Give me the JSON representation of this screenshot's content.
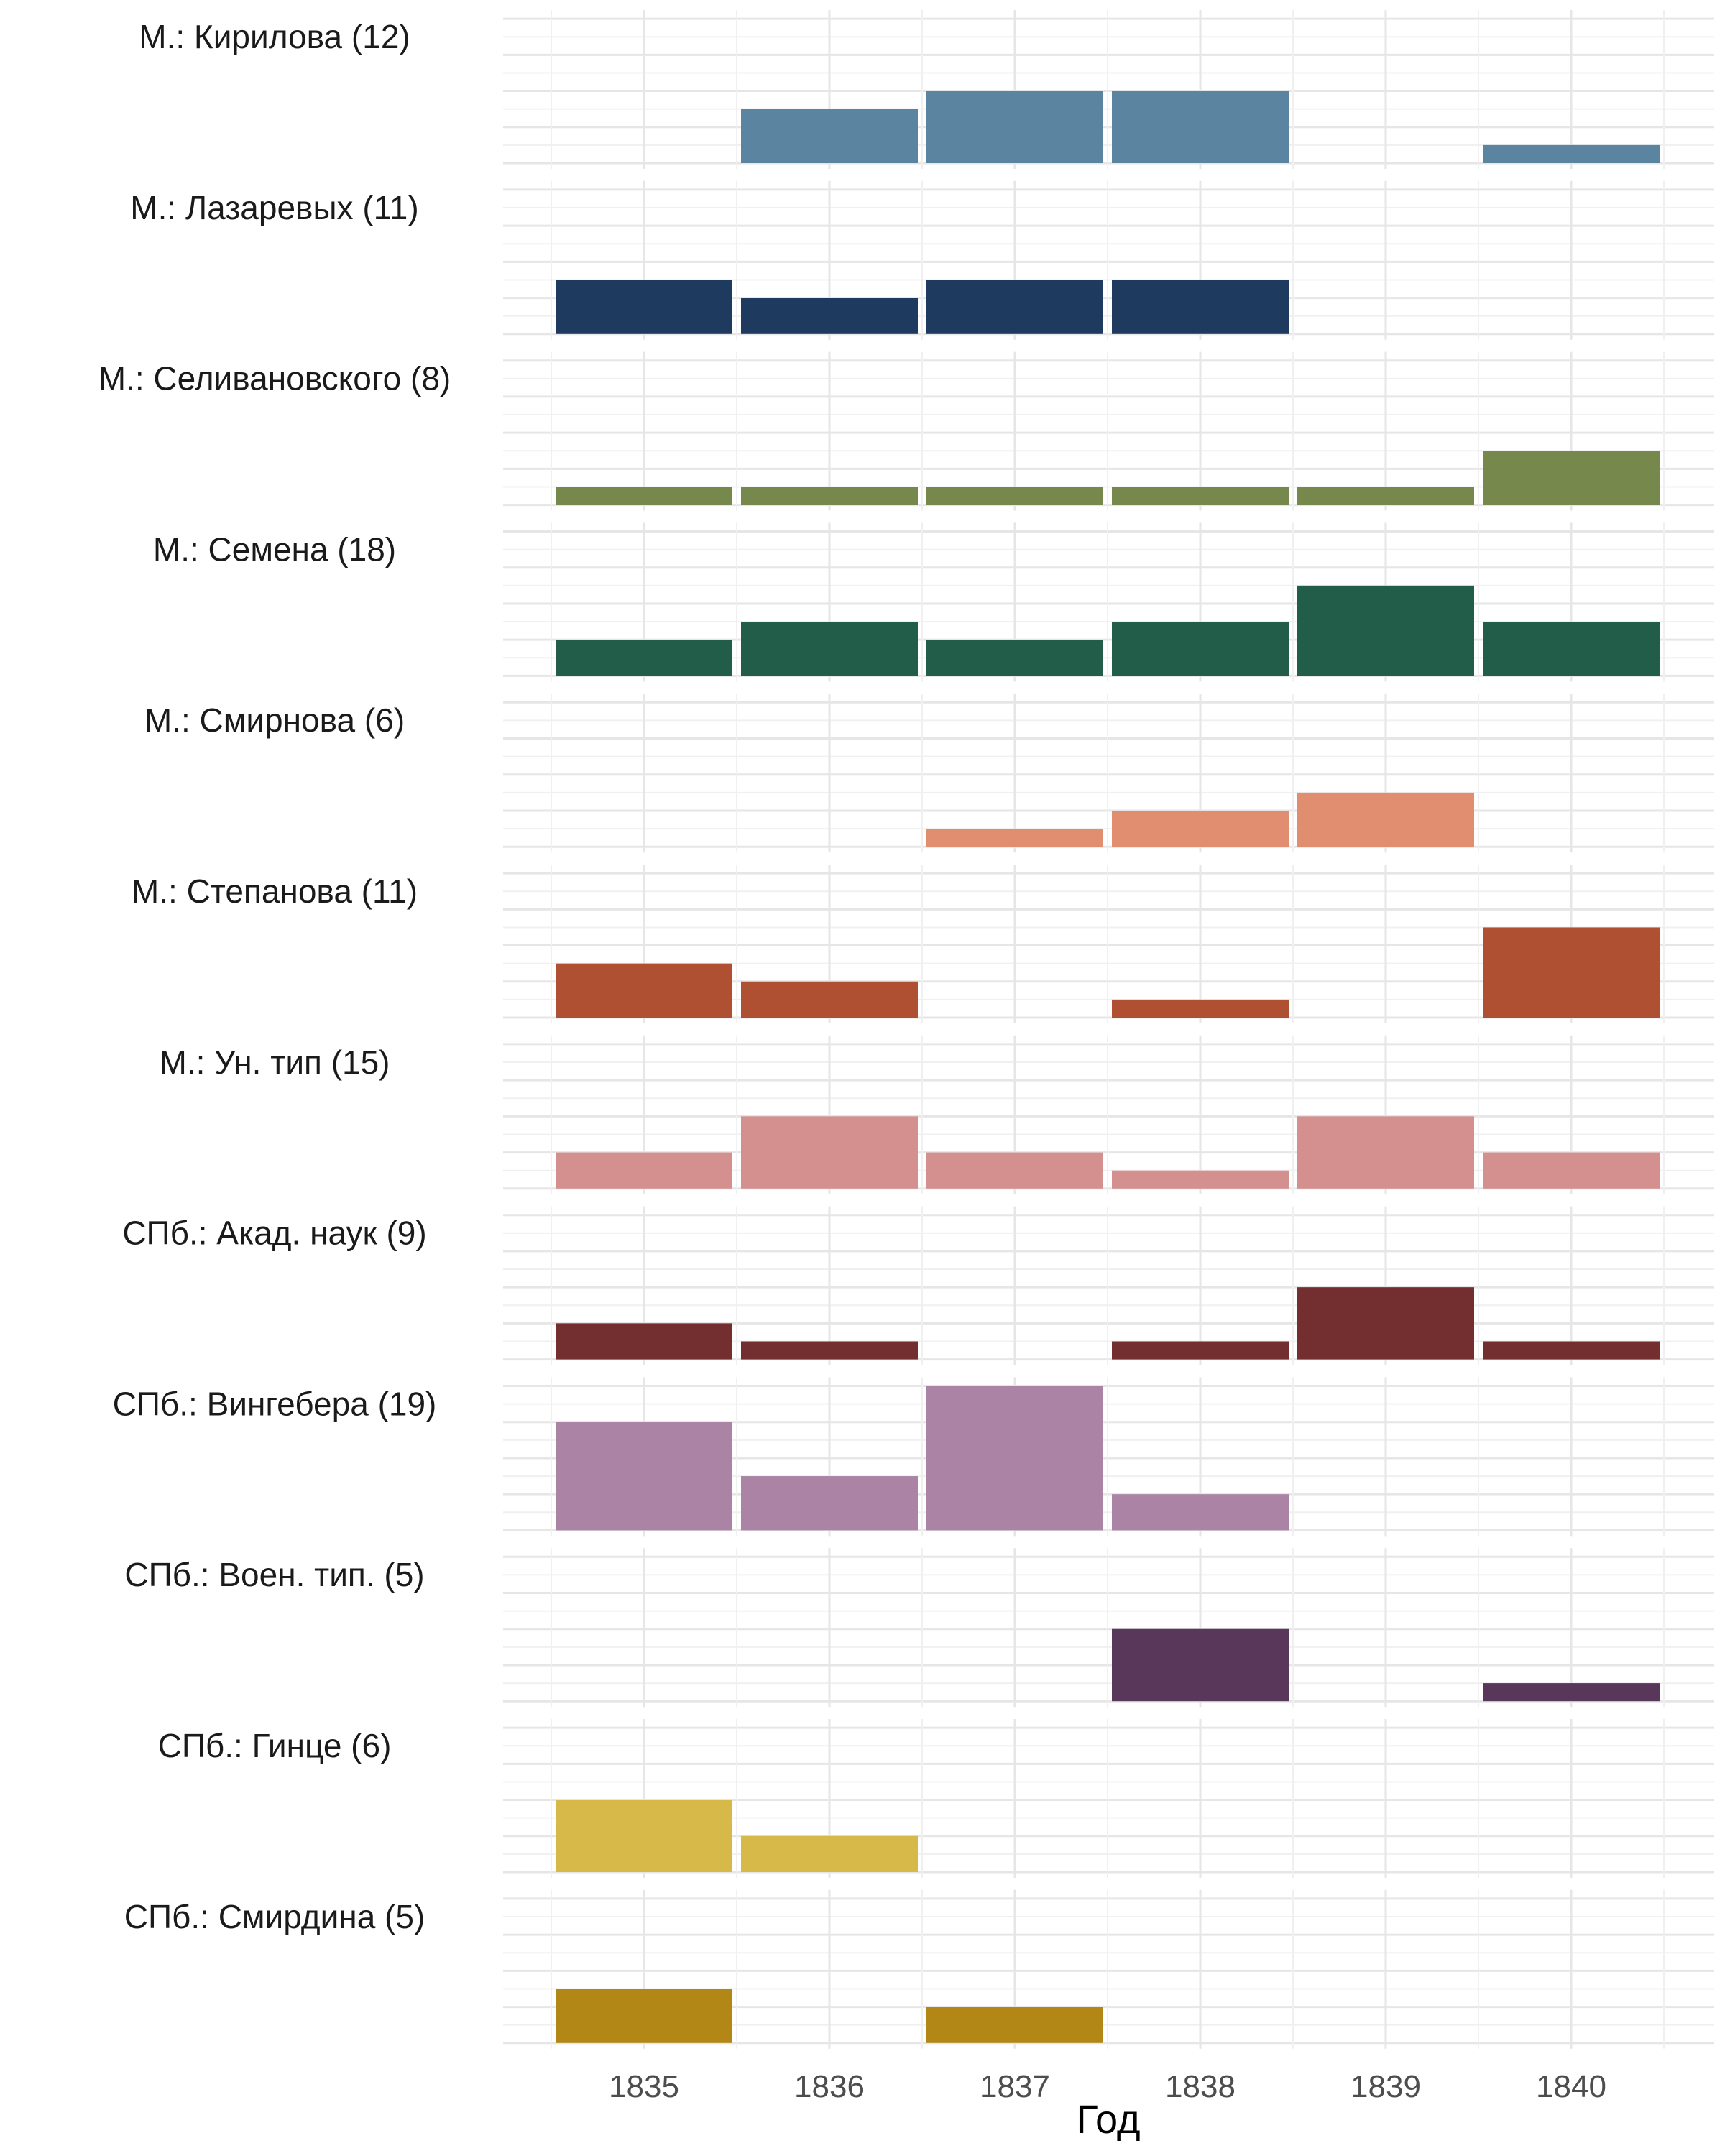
{
  "chart_data": {
    "type": "bar",
    "layout": "small-multiples",
    "xlabel": "Год",
    "x": [
      "1835",
      "1836",
      "1837",
      "1838",
      "1839",
      "1840"
    ],
    "ylim": [
      0,
      8
    ],
    "grid": true,
    "legend": "none",
    "series": [
      {
        "name": "М.: Кирилова (12)",
        "color": "#5b84a0",
        "values": [
          0,
          3,
          4,
          4,
          0,
          1
        ]
      },
      {
        "name": "М.: Лазаревых (11)",
        "color": "#1f3a5f",
        "values": [
          3,
          2,
          3,
          3,
          0,
          0
        ]
      },
      {
        "name": "М.: Селивановского (8)",
        "color": "#76884b",
        "values": [
          1,
          1,
          1,
          1,
          1,
          3
        ]
      },
      {
        "name": "М.: Семена (18)",
        "color": "#215d48",
        "values": [
          2,
          3,
          2,
          3,
          5,
          3
        ]
      },
      {
        "name": "М.: Смирнова (6)",
        "color": "#e08e6f",
        "values": [
          0,
          0,
          1,
          2,
          3,
          0
        ]
      },
      {
        "name": "М.: Степанова (11)",
        "color": "#b05032",
        "values": [
          3,
          2,
          0,
          1,
          0,
          5
        ]
      },
      {
        "name": "М.: Ун. тип (15)",
        "color": "#d48f8f",
        "values": [
          2,
          4,
          2,
          1,
          4,
          2
        ]
      },
      {
        "name": "СПб.: Акад. наук (9)",
        "color": "#732e30",
        "values": [
          2,
          1,
          0,
          1,
          4,
          1
        ]
      },
      {
        "name": "СПб.: Вингебера (19)",
        "color": "#aa83a5",
        "values": [
          6,
          3,
          8,
          2,
          0,
          0
        ]
      },
      {
        "name": "СПб.: Воен. тип. (5)",
        "color": "#59375a",
        "values": [
          0,
          0,
          0,
          4,
          0,
          1
        ]
      },
      {
        "name": "СПб.: Гинце (6)",
        "color": "#d7b94a",
        "values": [
          4,
          2,
          0,
          0,
          0,
          0
        ]
      },
      {
        "name": "СПб.: Смирдина (5)",
        "color": "#b38716",
        "values": [
          3,
          0,
          2,
          0,
          0,
          0
        ]
      }
    ]
  }
}
